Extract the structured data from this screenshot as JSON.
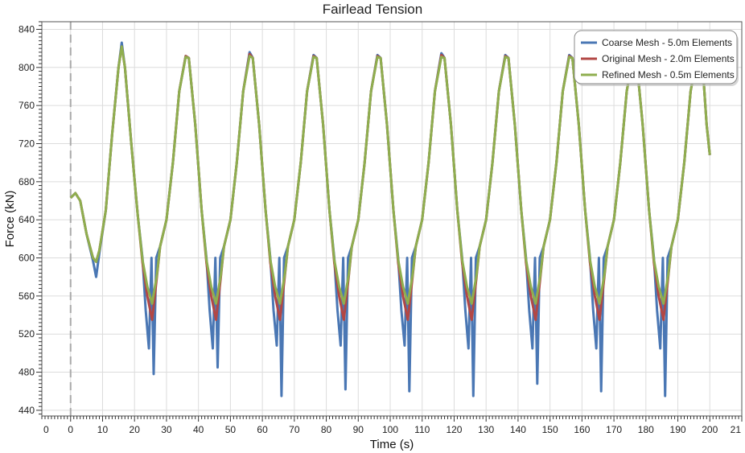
{
  "chart_data": {
    "type": "line",
    "title": "Fairlead Tension",
    "xlabel": "Time (s)",
    "ylabel": "Force (kN)",
    "xlim": [
      -9,
      210
    ],
    "ylim": [
      434,
      848
    ],
    "x_ticks": [
      0,
      10,
      20,
      30,
      40,
      50,
      60,
      70,
      80,
      90,
      100,
      110,
      120,
      130,
      140,
      150,
      160,
      170,
      180,
      190,
      200
    ],
    "x_tick_labels": [
      "0",
      "10",
      "20",
      "30",
      "40",
      "50",
      "60",
      "70",
      "80",
      "90",
      "100",
      "110",
      "120",
      "130",
      "140",
      "150",
      "160",
      "170",
      "180",
      "190",
      "200"
    ],
    "x_edge_labels": [
      "0",
      "21"
    ],
    "y_ticks": [
      440,
      480,
      520,
      560,
      600,
      640,
      680,
      720,
      760,
      800,
      840
    ],
    "y_tick_labels": [
      "440",
      "480",
      "520",
      "560",
      "600",
      "640",
      "680",
      "720",
      "760",
      "800",
      "840"
    ],
    "grid": true,
    "legend_position": "top-right",
    "reference_line": {
      "x": 0,
      "style": "dashed"
    },
    "series": [
      {
        "name": "Coarse Mesh - 5.0m Elements",
        "color": "#4a77b4",
        "x": [
          0,
          1.5,
          3,
          5,
          7,
          8,
          9,
          11,
          13,
          15,
          16,
          17,
          19,
          21,
          22.5,
          23.5,
          24.5,
          25.3,
          26,
          26.8,
          28,
          30,
          32,
          34,
          36,
          37,
          39,
          41,
          42.5,
          43.5,
          44.5,
          45.3,
          46,
          46.8,
          48,
          50,
          52,
          54,
          56,
          57,
          59,
          61,
          62.5,
          63.5,
          64.5,
          65.3,
          66,
          66.8,
          68,
          70,
          72,
          74,
          76,
          77,
          79,
          81,
          82.5,
          83.5,
          84.5,
          85.3,
          86,
          86.8,
          88,
          90,
          92,
          94,
          96,
          97,
          99,
          101,
          102.5,
          103.5,
          104.5,
          105.3,
          106,
          106.8,
          108,
          110,
          112,
          114,
          116,
          117,
          119,
          121,
          122.5,
          123.5,
          124.5,
          125.3,
          126,
          126.8,
          128,
          130,
          132,
          134,
          136,
          137,
          139,
          141,
          142.5,
          143.5,
          144.5,
          145.3,
          146,
          146.8,
          148,
          150,
          152,
          154,
          156,
          157,
          159,
          161,
          162.5,
          163.5,
          164.5,
          165.3,
          166,
          166.8,
          168,
          170,
          172,
          174,
          176,
          177,
          179,
          181,
          182.5,
          183.5,
          184.5,
          185.3,
          186,
          186.8,
          188,
          190,
          192,
          194,
          196,
          197,
          198,
          199,
          200
        ],
        "values": [
          663,
          668,
          660,
          625,
          597,
          580,
          605,
          650,
          730,
          800,
          826,
          800,
          720,
          645,
          600,
          545,
          505,
          600,
          478,
          600,
          612,
          640,
          700,
          775,
          812,
          810,
          740,
          650,
          600,
          545,
          505,
          600,
          485,
          600,
          612,
          640,
          700,
          775,
          816,
          810,
          740,
          650,
          600,
          545,
          508,
          600,
          455,
          600,
          612,
          640,
          700,
          775,
          813,
          810,
          740,
          650,
          600,
          545,
          508,
          600,
          462,
          600,
          612,
          640,
          700,
          775,
          813,
          810,
          740,
          650,
          600,
          545,
          508,
          600,
          460,
          600,
          612,
          640,
          700,
          775,
          815,
          810,
          740,
          650,
          600,
          545,
          505,
          600,
          455,
          600,
          612,
          640,
          700,
          775,
          813,
          810,
          740,
          650,
          600,
          545,
          505,
          600,
          468,
          600,
          612,
          640,
          700,
          775,
          813,
          810,
          740,
          650,
          600,
          545,
          505,
          600,
          460,
          600,
          612,
          640,
          700,
          775,
          812,
          810,
          740,
          650,
          600,
          545,
          505,
          600,
          455,
          600,
          612,
          640,
          700,
          775,
          812,
          810,
          790,
          740,
          708
        ]
      },
      {
        "name": "Original Mesh - 2.0m Elements",
        "color": "#b24745",
        "x": [
          0,
          1.5,
          3,
          5,
          7,
          8,
          9,
          11,
          13,
          15,
          16,
          17,
          19,
          21,
          22.5,
          24,
          25.5,
          27,
          28,
          30,
          32,
          34,
          36,
          37,
          39,
          41,
          42.5,
          44,
          45.5,
          47,
          48,
          50,
          52,
          54,
          56,
          57,
          59,
          61,
          62.5,
          64,
          65.5,
          67,
          68,
          70,
          72,
          74,
          76,
          77,
          79,
          81,
          82.5,
          84,
          85.5,
          87,
          88,
          90,
          92,
          94,
          96,
          97,
          99,
          101,
          102.5,
          104,
          105.5,
          107,
          108,
          110,
          112,
          114,
          116,
          117,
          119,
          121,
          122.5,
          124,
          125.5,
          127,
          128,
          130,
          132,
          134,
          136,
          137,
          139,
          141,
          142.5,
          144,
          145.5,
          147,
          148,
          150,
          152,
          154,
          156,
          157,
          159,
          161,
          162.5,
          164,
          165.5,
          167,
          168,
          170,
          172,
          174,
          176,
          177,
          179,
          181,
          182.5,
          184,
          185.5,
          187,
          188,
          190,
          192,
          194,
          196,
          197,
          198,
          199,
          200
        ],
        "values": [
          663,
          668,
          660,
          625,
          600,
          596,
          608,
          650,
          730,
          800,
          822,
          800,
          720,
          645,
          595,
          560,
          535,
          580,
          612,
          640,
          700,
          775,
          812,
          810,
          740,
          650,
          595,
          560,
          535,
          580,
          612,
          640,
          700,
          775,
          814,
          810,
          740,
          650,
          595,
          560,
          535,
          580,
          612,
          640,
          700,
          775,
          812,
          810,
          740,
          650,
          595,
          560,
          535,
          580,
          612,
          640,
          700,
          775,
          812,
          810,
          740,
          650,
          595,
          560,
          535,
          580,
          612,
          640,
          700,
          775,
          813,
          810,
          740,
          650,
          595,
          560,
          535,
          580,
          612,
          640,
          700,
          775,
          812,
          810,
          740,
          650,
          595,
          560,
          535,
          580,
          612,
          640,
          700,
          775,
          812,
          810,
          740,
          650,
          595,
          560,
          535,
          580,
          612,
          640,
          700,
          775,
          812,
          810,
          740,
          650,
          595,
          560,
          535,
          580,
          612,
          640,
          700,
          775,
          812,
          810,
          790,
          740,
          708
        ]
      },
      {
        "name": "Refined Mesh - 0.5m Elements",
        "color": "#8fae4f",
        "x": [
          0,
          1.5,
          3,
          5,
          7,
          8,
          9,
          11,
          13,
          15,
          16,
          17,
          19,
          21,
          22.5,
          24,
          25.5,
          27,
          28,
          30,
          32,
          34,
          36,
          37,
          39,
          41,
          42.5,
          44,
          45.5,
          47,
          48,
          50,
          52,
          54,
          56,
          57,
          59,
          61,
          62.5,
          64,
          65.5,
          67,
          68,
          70,
          72,
          74,
          76,
          77,
          79,
          81,
          82.5,
          84,
          85.5,
          87,
          88,
          90,
          92,
          94,
          96,
          97,
          99,
          101,
          102.5,
          104,
          105.5,
          107,
          108,
          110,
          112,
          114,
          116,
          117,
          119,
          121,
          122.5,
          124,
          125.5,
          127,
          128,
          130,
          132,
          134,
          136,
          137,
          139,
          141,
          142.5,
          144,
          145.5,
          147,
          148,
          150,
          152,
          154,
          156,
          157,
          159,
          161,
          162.5,
          164,
          165.5,
          167,
          168,
          170,
          172,
          174,
          176,
          177,
          179,
          181,
          182.5,
          184,
          185.5,
          187,
          188,
          190,
          192,
          194,
          196,
          197,
          198,
          199,
          200
        ],
        "values": [
          663,
          668,
          660,
          625,
          600,
          596,
          608,
          650,
          730,
          800,
          822,
          800,
          720,
          645,
          598,
          570,
          552,
          582,
          612,
          640,
          700,
          775,
          811,
          810,
          740,
          650,
          598,
          570,
          552,
          582,
          612,
          640,
          700,
          775,
          812,
          810,
          740,
          650,
          598,
          570,
          552,
          582,
          612,
          640,
          700,
          775,
          811,
          810,
          740,
          650,
          598,
          570,
          552,
          582,
          612,
          640,
          700,
          775,
          811,
          810,
          740,
          650,
          598,
          570,
          552,
          582,
          612,
          640,
          700,
          775,
          811,
          810,
          740,
          650,
          598,
          570,
          552,
          582,
          612,
          640,
          700,
          775,
          811,
          810,
          740,
          650,
          598,
          570,
          552,
          582,
          612,
          640,
          700,
          775,
          811,
          810,
          740,
          650,
          598,
          570,
          552,
          582,
          612,
          640,
          700,
          775,
          811,
          810,
          740,
          650,
          598,
          570,
          552,
          582,
          612,
          640,
          700,
          775,
          811,
          810,
          790,
          740,
          708
        ]
      }
    ]
  }
}
